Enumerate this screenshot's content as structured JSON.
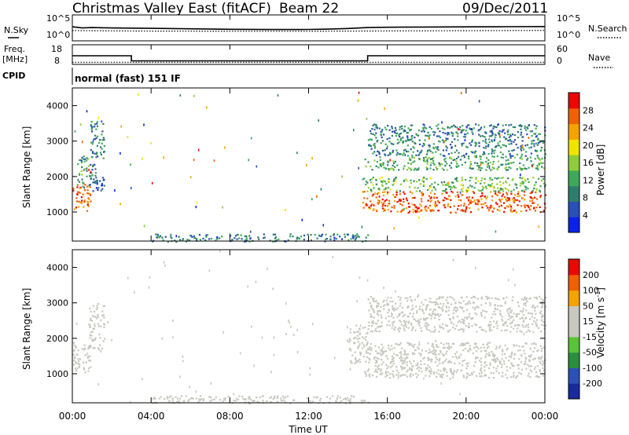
{
  "header": {
    "site": "Christmas Valley East (fitACF)",
    "beam": "Beam 22",
    "date": "09/Dec/2011"
  },
  "noise_panel": {
    "left_label": "N.Sky",
    "right_label": "N.Search",
    "left_ticks": [
      "10^5",
      "10^0"
    ],
    "right_ticks": [
      "10^5",
      "10^0"
    ]
  },
  "freq_panel": {
    "left_label_line1": "Freq.",
    "left_label_line2": "[MHz]",
    "right_label": "Nave",
    "left_ticks": [
      18,
      8
    ],
    "right_ticks": [
      60,
      0
    ]
  },
  "cpid": {
    "label": "CPID",
    "value": "normal (fast) 151 IF"
  },
  "time_axis": {
    "label": "Time UT",
    "ticks": [
      "00:00",
      "04:00",
      "08:00",
      "12:00",
      "16:00",
      "20:00",
      "00:00"
    ]
  },
  "colors": {
    "power_scale": [
      "#0b22e6",
      "#2b4fb8",
      "#2e7d6c",
      "#3caa5a",
      "#8fcc3c",
      "#f0e400",
      "#f5a300",
      "#f06200",
      "#e80a00"
    ],
    "velocity_scale": [
      "#e80a00",
      "#f06000",
      "#f5a300",
      "#c8c8c0",
      "#c8c8c0",
      "#59c438",
      "#2a8e3e",
      "#2d4fb8",
      "#1a2a9e"
    ],
    "ground_scatter": "#c8c8c0"
  },
  "chart_data": [
    {
      "type": "line",
      "title": "N.Sky / N.Search",
      "x_unit": "hours UT",
      "x_range": [
        0,
        24
      ],
      "y_scale": "log",
      "series": [
        {
          "name": "N.Sky",
          "x": [
            0,
            0.5,
            1,
            2,
            4,
            6,
            8,
            10,
            12,
            13,
            14,
            15,
            16,
            18,
            20,
            22,
            24
          ],
          "y": [
            2000,
            900,
            1200,
            900,
            700,
            500,
            350,
            300,
            320,
            400,
            600,
            1200,
            1500,
            1700,
            1900,
            2100,
            2400
          ]
        },
        {
          "name": "N.Search",
          "x": [
            0,
            2,
            4,
            8,
            12,
            16,
            20,
            24
          ],
          "y": [
            150,
            120,
            100,
            90,
            90,
            110,
            130,
            160
          ]
        }
      ]
    },
    {
      "type": "line",
      "title": "Freq. / Nave",
      "x_unit": "hours UT",
      "x_range": [
        0,
        24
      ],
      "series": [
        {
          "name": "Freq.",
          "x": [
            0,
            3,
            3,
            15,
            15,
            24
          ],
          "y": [
            14.7,
            14.7,
            10.3,
            10.3,
            14.7,
            14.7
          ]
        },
        {
          "name": "Nave",
          "x": [
            0,
            24
          ],
          "y": [
            7,
            7
          ]
        }
      ]
    },
    {
      "type": "heatmap",
      "title": "Power",
      "ylabel": "Slant Range [km]",
      "xlabel": "Time UT",
      "colorbar_label": "Power [dB]",
      "colorbar_ticks": [
        4,
        8,
        12,
        16,
        20,
        24,
        28
      ],
      "x_range": [
        0,
        24
      ],
      "y_range": [
        180,
        4500
      ],
      "y_ticks": [
        1000,
        2000,
        3000,
        4000
      ],
      "regions": [
        {
          "t0": 0.0,
          "t1": 0.9,
          "r0": 1050,
          "r1": 1900,
          "level": 26
        },
        {
          "t0": 0.2,
          "t1": 1.2,
          "r0": 1700,
          "r1": 2600,
          "level": 10
        },
        {
          "t0": 0.9,
          "t1": 1.6,
          "r0": 2500,
          "r1": 3600,
          "level": 9
        },
        {
          "t0": 1.0,
          "t1": 1.6,
          "r0": 1600,
          "r1": 2000,
          "level": 6
        },
        {
          "t0": 14.7,
          "t1": 24.0,
          "r0": 1000,
          "r1": 1600,
          "level": 27
        },
        {
          "t0": 14.7,
          "t1": 24.0,
          "r0": 1600,
          "r1": 2000,
          "level": 14
        },
        {
          "t0": 14.8,
          "t1": 24.0,
          "r0": 2200,
          "r1": 2600,
          "level": 12
        },
        {
          "t0": 15.0,
          "t1": 24.0,
          "r0": 2600,
          "r1": 3500,
          "level": 9
        },
        {
          "t0": 4.0,
          "t1": 15.0,
          "r0": 180,
          "r1": 400,
          "level": 8
        }
      ]
    },
    {
      "type": "heatmap",
      "title": "Velocity",
      "ylabel": "Slant Range [km]",
      "xlabel": "Time UT",
      "colorbar_label": "Velocity [m s^-1]",
      "colorbar_ticks": [
        200,
        100,
        50,
        15,
        -15,
        -50,
        -100,
        -200
      ],
      "x_range": [
        0,
        24
      ],
      "y_range": [
        180,
        4500
      ],
      "y_ticks": [
        1000,
        2000,
        3000,
        4000
      ],
      "regions": [
        {
          "t0": 0.0,
          "t1": 0.9,
          "r0": 1050,
          "r1": 1900,
          "level": 0
        },
        {
          "t0": 0.8,
          "t1": 1.6,
          "r0": 1700,
          "r1": 3000,
          "level": 0
        },
        {
          "t0": 14.0,
          "t1": 15.0,
          "r0": 1300,
          "r1": 2400,
          "level": 40
        },
        {
          "t0": 14.8,
          "t1": 24.0,
          "r0": 900,
          "r1": 1900,
          "level": 0
        },
        {
          "t0": 15.0,
          "t1": 24.0,
          "r0": 2200,
          "r1": 3200,
          "level": 0
        },
        {
          "t0": 4.0,
          "t1": 15.0,
          "r0": 180,
          "r1": 400,
          "level": -40
        }
      ]
    }
  ]
}
